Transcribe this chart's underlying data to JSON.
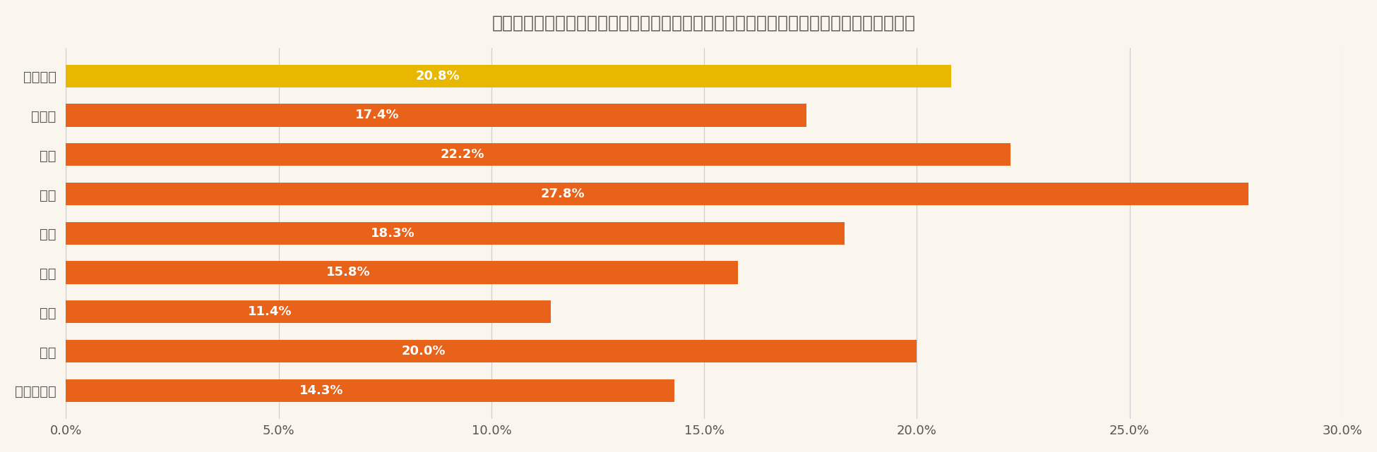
{
  "title": "「政府や自治体からの呼びかけ」が要因で省エネ意識が上がったと回答した方＜地域別＞",
  "categories": [
    "全国平均",
    "北海道",
    "東北",
    "関東",
    "中部",
    "近畿",
    "中国",
    "四国",
    "九州・沖縄"
  ],
  "values": [
    20.8,
    17.4,
    22.2,
    27.8,
    18.3,
    15.8,
    11.4,
    20.0,
    14.3
  ],
  "bar_colors": [
    "#E8B800",
    "#E8621A",
    "#E8621A",
    "#E8621A",
    "#E8621A",
    "#E8621A",
    "#E8621A",
    "#E8621A",
    "#E8621A"
  ],
  "background_color": "#FAF6EE",
  "text_color": "#555555",
  "label_color": "#FFFFFF",
  "xlim": [
    0,
    30
  ],
  "xticks": [
    0,
    5,
    10,
    15,
    20,
    25,
    30
  ],
  "xtick_labels": [
    "0.0%",
    "5.0%",
    "10.0%",
    "15.0%",
    "20.0%",
    "25.0%",
    "30.0%"
  ],
  "title_fontsize": 18,
  "tick_fontsize": 13,
  "bar_label_fontsize": 13,
  "category_fontsize": 14,
  "bar_height": 0.58,
  "grid_color": "#CCCCCC"
}
